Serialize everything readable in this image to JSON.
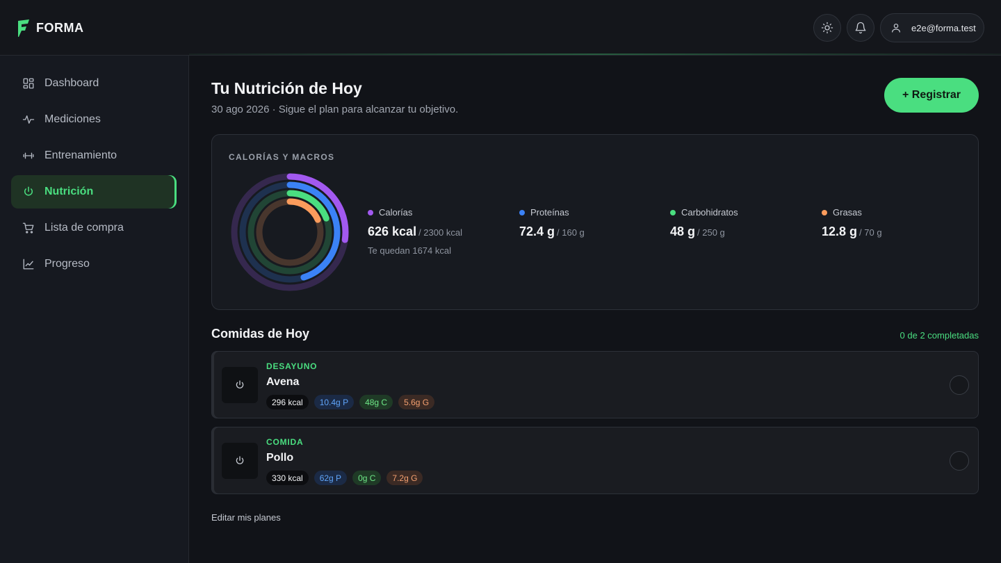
{
  "app": {
    "name": "FORMA"
  },
  "header": {
    "user_email": "e2e@forma.test"
  },
  "sidebar": {
    "items": [
      {
        "label": "Dashboard",
        "icon": "dashboard-icon"
      },
      {
        "label": "Mediciones",
        "icon": "activity-icon"
      },
      {
        "label": "Entrenamiento",
        "icon": "dumbbell-icon"
      },
      {
        "label": "Nutrición",
        "icon": "power-icon",
        "active": true
      },
      {
        "label": "Lista de compra",
        "icon": "cart-icon"
      },
      {
        "label": "Progreso",
        "icon": "chart-line-icon"
      }
    ]
  },
  "main": {
    "title": "Tu Nutrición de Hoy",
    "subtitle": "30 ago 2026 · Sigue el plan para alcanzar tu objetivo.",
    "register_label": "+ Registrar",
    "macros_card": {
      "label": "CALORÍAS Y MACROS",
      "macros": [
        {
          "name": "Calorías",
          "value": "626 kcal",
          "target": "/ 2300 kcal",
          "fraction": 0.272,
          "color": "#a259f0",
          "note": "Te quedan 1674 kcal"
        },
        {
          "name": "Proteínas",
          "value": "72.4 g",
          "target": "/ 160 g",
          "fraction": 0.4525,
          "color": "#3b82f6"
        },
        {
          "name": "Carbohidratos",
          "value": "48 g",
          "target": "/ 250 g",
          "fraction": 0.192,
          "color": "#4ade80"
        },
        {
          "name": "Grasas",
          "value": "12.8 g",
          "target": "/ 70 g",
          "fraction": 0.183,
          "color": "#fb9c5c"
        }
      ]
    },
    "meals_title": "Comidas de Hoy",
    "meals_count": "0 de 2 completadas",
    "meals": [
      {
        "type": "DESAYUNO",
        "name": "Avena",
        "kcal": "296 kcal",
        "p": "10.4g P",
        "c": "48g C",
        "g": "5.6g G"
      },
      {
        "type": "COMIDA",
        "name": "Pollo",
        "kcal": "330 kcal",
        "p": "62g P",
        "c": "0g C",
        "g": "7.2g G"
      }
    ],
    "edit_link": "Editar mis planes"
  },
  "colors": {
    "accent": "#4ade80",
    "background": "#111318"
  }
}
